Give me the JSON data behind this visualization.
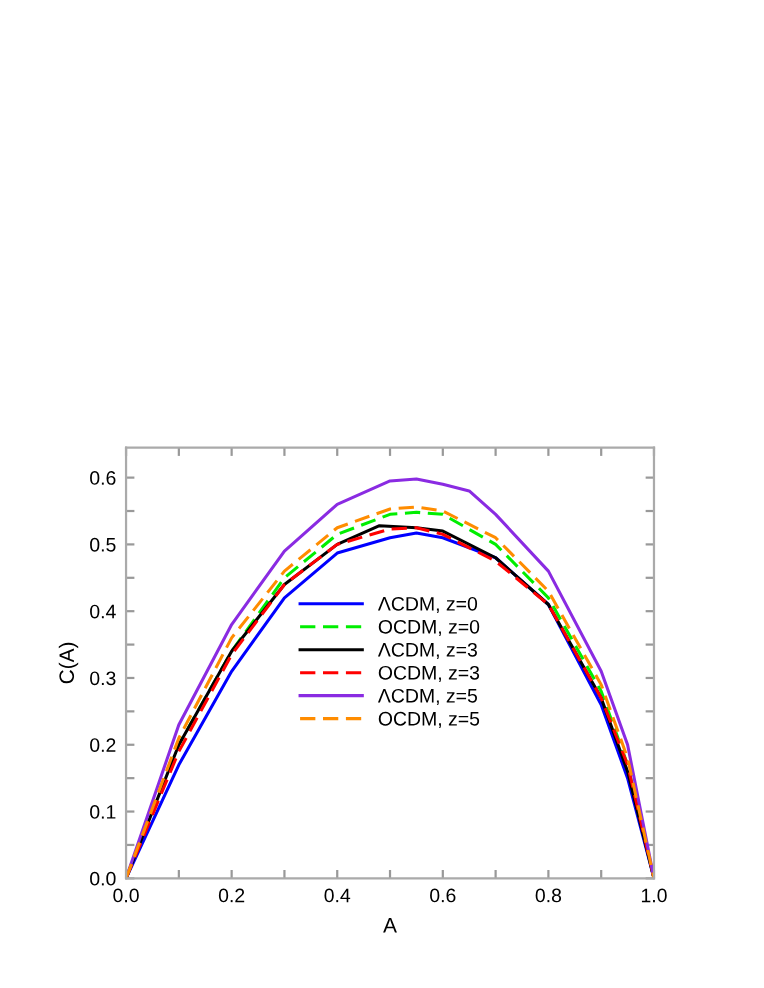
{
  "chart_data": {
    "type": "line",
    "xlabel": "A",
    "ylabel": "C(A)",
    "xlim": [
      0,
      1
    ],
    "ylim": [
      0,
      0.645
    ],
    "xticks": [
      {
        "value": 0,
        "label": "0.0"
      },
      {
        "value": 0.1,
        "label": null
      },
      {
        "value": 0.2,
        "label": "0.2"
      },
      {
        "value": 0.3,
        "label": null
      },
      {
        "value": 0.4,
        "label": "0.4"
      },
      {
        "value": 0.5,
        "label": null
      },
      {
        "value": 0.6,
        "label": "0.6"
      },
      {
        "value": 0.7,
        "label": null
      },
      {
        "value": 0.8,
        "label": "0.8"
      },
      {
        "value": 0.9,
        "label": null
      },
      {
        "value": 1.0,
        "label": "1.0"
      }
    ],
    "yticks": [
      {
        "value": 0,
        "label": "0.0"
      },
      {
        "value": 0.05,
        "label": null
      },
      0.1,
      {
        "value": 0.15,
        "label": null
      },
      0.2,
      {
        "value": 0.25,
        "label": null
      },
      0.3,
      {
        "value": 0.35,
        "label": null
      },
      0.4,
      {
        "value": 0.45,
        "label": null
      },
      0.5,
      {
        "value": 0.55,
        "label": null
      },
      0.6
    ],
    "grid": false,
    "legend": "center",
    "marker": "none",
    "series": [
      {
        "name": "ΛCDM, z=0",
        "color": "#0000ff",
        "line_style": "solid",
        "x": [
          0,
          0.1,
          0.2,
          0.3,
          0.4,
          0.5,
          0.55,
          0.6,
          0.7,
          0.8,
          0.9,
          0.95,
          1.0
        ],
        "values": [
          0,
          0.17,
          0.31,
          0.42,
          0.487,
          0.51,
          0.517,
          0.51,
          0.48,
          0.41,
          0.26,
          0.15,
          0
        ]
      },
      {
        "name": "OCDM, z=0",
        "color": "#00ee00",
        "line_style": "dashed",
        "x": [
          0,
          0.1,
          0.2,
          0.3,
          0.4,
          0.5,
          0.55,
          0.6,
          0.7,
          0.8,
          0.9,
          0.95,
          1.0
        ],
        "values": [
          0,
          0.2,
          0.34,
          0.45,
          0.515,
          0.545,
          0.548,
          0.545,
          0.5,
          0.42,
          0.28,
          0.17,
          0
        ]
      },
      {
        "name": "ΛCDM, z=3",
        "color": "#000000",
        "line_style": "solid",
        "x": [
          0,
          0.1,
          0.2,
          0.3,
          0.4,
          0.48,
          0.55,
          0.6,
          0.7,
          0.8,
          0.9,
          0.95,
          1.0
        ],
        "values": [
          0,
          0.2,
          0.34,
          0.44,
          0.5,
          0.528,
          0.525,
          0.52,
          0.48,
          0.41,
          0.27,
          0.16,
          0
        ]
      },
      {
        "name": "OCDM, z=3",
        "color": "#ff0000",
        "line_style": "dashed",
        "x": [
          0,
          0.1,
          0.2,
          0.3,
          0.4,
          0.5,
          0.55,
          0.6,
          0.7,
          0.8,
          0.9,
          0.95,
          1.0
        ],
        "values": [
          0,
          0.19,
          0.335,
          0.44,
          0.5,
          0.523,
          0.525,
          0.515,
          0.475,
          0.41,
          0.27,
          0.17,
          0
        ]
      },
      {
        "name": "ΛCDM, z=5",
        "color": "#8a2be2",
        "line_style": "solid",
        "x": [
          0,
          0.1,
          0.2,
          0.3,
          0.4,
          0.5,
          0.55,
          0.6,
          0.65,
          0.7,
          0.8,
          0.9,
          0.95,
          1.0
        ],
        "values": [
          0,
          0.23,
          0.38,
          0.49,
          0.56,
          0.595,
          0.598,
          0.59,
          0.58,
          0.545,
          0.46,
          0.31,
          0.2,
          0
        ]
      },
      {
        "name": "OCDM, z=5",
        "color": "#ff8c00",
        "line_style": "dashed",
        "x": [
          0,
          0.1,
          0.2,
          0.3,
          0.4,
          0.5,
          0.55,
          0.6,
          0.7,
          0.8,
          0.9,
          0.95,
          1.0
        ],
        "values": [
          0,
          0.21,
          0.36,
          0.46,
          0.525,
          0.553,
          0.556,
          0.55,
          0.51,
          0.43,
          0.29,
          0.18,
          0
        ]
      }
    ]
  }
}
